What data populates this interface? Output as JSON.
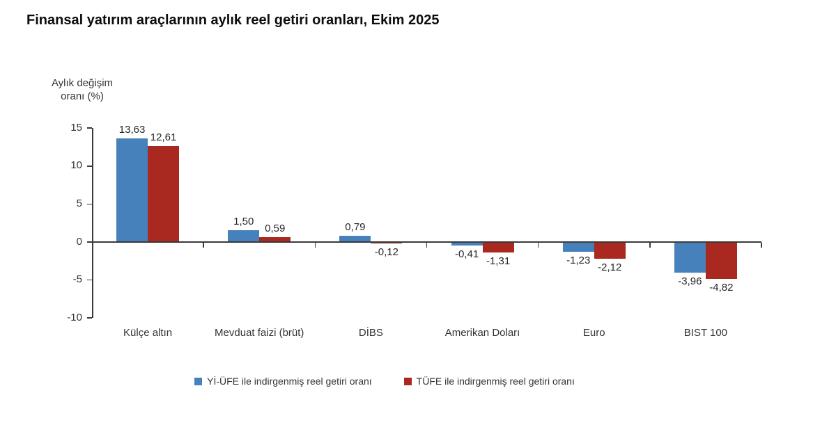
{
  "page": {
    "title": "Finansal yatırım araçlarının aylık reel getiri oranları, Ekim 2025"
  },
  "chart_data": {
    "type": "bar",
    "title": "Finansal yatırım araçlarının aylık reel getiri oranları, Ekim 2025",
    "y_axis_title_lines": [
      "Aylık değişim",
      "oranı (%)"
    ],
    "xlabel": "",
    "ylabel": "Aylık değişim oranı (%)",
    "categories": [
      "Külçe altın",
      "Mevduat faizi (brüt)",
      "DİBS",
      "Amerikan Doları",
      "Euro",
      "BIST 100"
    ],
    "series": [
      {
        "name": "Yİ-ÜFE ile indirgenmiş reel getiri oranı",
        "color": "#4681bc",
        "values": [
          13.63,
          1.5,
          0.79,
          -0.41,
          -1.23,
          -3.96
        ],
        "labels": [
          "13,63",
          "1,50",
          "0,79",
          "-0,41",
          "-1,23",
          "-3,96"
        ]
      },
      {
        "name": "TÜFE ile indirgenmiş reel getiri oranı",
        "color": "#a9281f",
        "values": [
          12.61,
          0.59,
          -0.12,
          -1.31,
          -2.12,
          -4.82
        ],
        "labels": [
          "12,61",
          "0,59",
          "-0,12",
          "-1,31",
          "-2,12",
          "-4,82"
        ]
      }
    ],
    "y_ticks": [
      15,
      10,
      5,
      0,
      -5,
      -10
    ],
    "y_tick_labels": [
      "15",
      "10",
      "5",
      "0",
      "-5",
      "-10"
    ],
    "ylim": [
      -10,
      15
    ],
    "grid": false,
    "legend_position": "bottom"
  },
  "colors": {
    "series_blue": "#4681bc",
    "series_red": "#a9281f",
    "axis": "#3a3a3a",
    "text": "#333333",
    "title_text": "#0d0d0d",
    "background": "#ffffff"
  }
}
